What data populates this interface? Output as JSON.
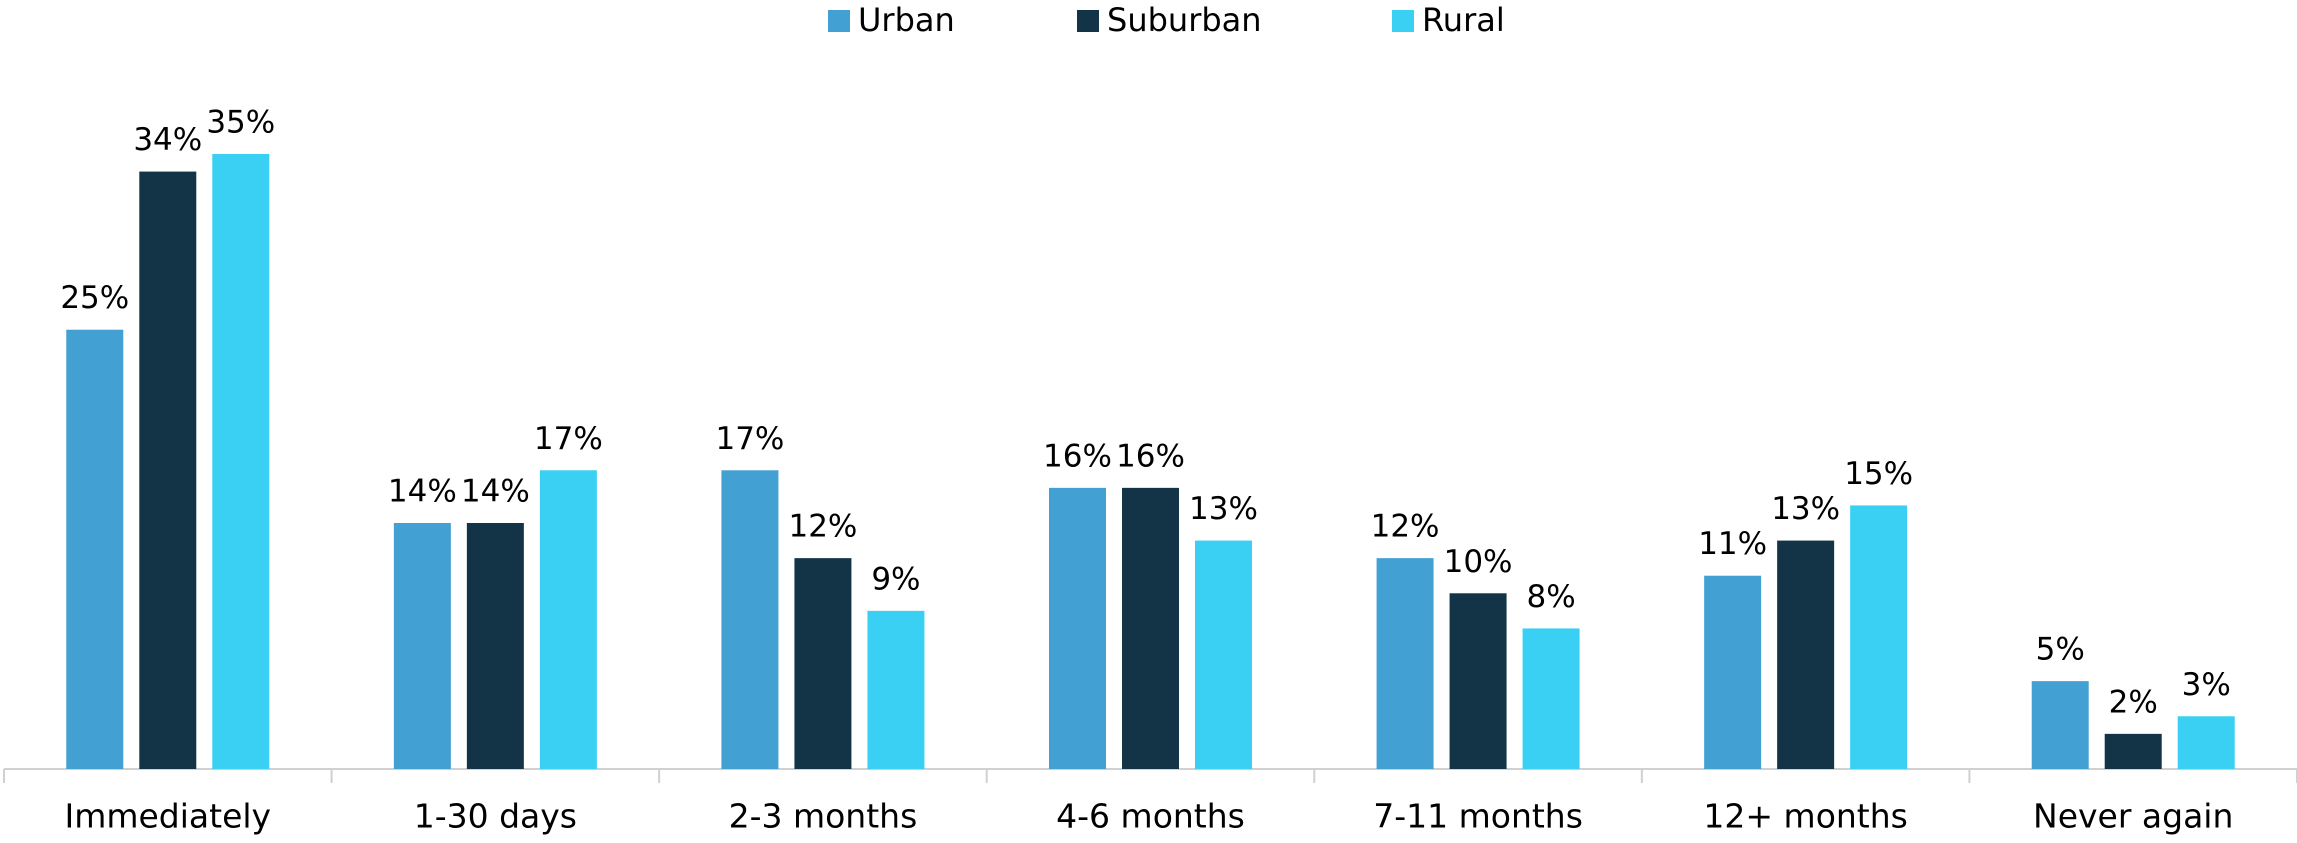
{
  "chart_data": {
    "type": "bar",
    "categories": [
      "Immediately",
      "1-30 days",
      "2-3 months",
      "4-6 months",
      "7-11 months",
      "12+ months",
      "Never again"
    ],
    "series": [
      {
        "name": "Urban",
        "color": "#43a0d3",
        "values": [
          25,
          14,
          17,
          16,
          12,
          11,
          5
        ],
        "value_labels": [
          "25%",
          "14%",
          "17%",
          "16%",
          "12%",
          "11%",
          "5%"
        ]
      },
      {
        "name": "Suburban",
        "color": "#133447",
        "values": [
          34,
          14,
          12,
          16,
          10,
          13,
          2
        ],
        "value_labels": [
          "34%",
          "14%",
          "12%",
          "16%",
          "10%",
          "13%",
          "2%"
        ]
      },
      {
        "name": "Rural",
        "color": "#39d0f3",
        "values": [
          35,
          17,
          9,
          13,
          8,
          15,
          3
        ],
        "value_labels": [
          "35%",
          "17%",
          "9%",
          "13%",
          "8%",
          "15%",
          "3%"
        ]
      }
    ],
    "legend": "top"
  }
}
